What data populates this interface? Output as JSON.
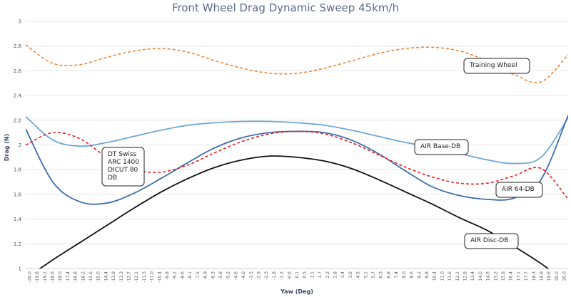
{
  "chart_data": {
    "type": "line",
    "title": "Front Wheel Drag Dynamic Sweep 45km/h",
    "xlabel": "Yaw (Deg)",
    "ylabel": "Drag (N)",
    "xlim": [
      -20.0,
      20.0
    ],
    "ylim": [
      1,
      3
    ],
    "yticks": [
      "1",
      "1.2",
      "1.4",
      "1.6",
      "1.8",
      "2",
      "2.2",
      "2.4",
      "2.6",
      "2.8",
      "3"
    ],
    "xticks": [
      "-20.0",
      "-19.8",
      "-19.2",
      "-18.6",
      "-18.0",
      "-17.4",
      "-16.8",
      "-16.2",
      "-15.6",
      "-15.0",
      "-14.4",
      "-13.9",
      "-13.3",
      "-12.7",
      "-12.1",
      "-11.5",
      "-11.0",
      "-10.4",
      "-9.8",
      "-9.2",
      "-8.6",
      "-8.1",
      "-7.5",
      "-6.9",
      "-6.3",
      "-5.8",
      "-5.2",
      "-4.6",
      "-4.0",
      "-3.5",
      "-2.9",
      "-2.3",
      "-1.8",
      "-1.2",
      "-0.6",
      "0.1",
      "0.5",
      "1.1",
      "1.7",
      "2.2",
      "2.8",
      "3.4",
      "3.9",
      "4.5",
      "5.1",
      "5.7",
      "6.3",
      "6.8",
      "7.4",
      "8.0",
      "8.6",
      "9.2",
      "9.8",
      "10.4",
      "11.0",
      "11.6",
      "12.1",
      "12.8",
      "13.4",
      "14.0",
      "14.6",
      "15.2",
      "15.8",
      "16.4",
      "17.1",
      "17.7",
      "18.3",
      "18.9",
      "19.6",
      "20.0",
      "20.0"
    ],
    "x": [
      -20,
      -18,
      -16,
      -14,
      -12,
      -10,
      -8,
      -6,
      -4,
      -2,
      0,
      2,
      4,
      6,
      8,
      10,
      12,
      14,
      16,
      18,
      20
    ],
    "series": [
      {
        "name": "Training Wheel",
        "color": "#e8883a",
        "dash": true,
        "values": [
          2.81,
          2.66,
          2.65,
          2.71,
          2.76,
          2.78,
          2.75,
          2.68,
          2.62,
          2.58,
          2.58,
          2.62,
          2.68,
          2.74,
          2.78,
          2.79,
          2.76,
          2.68,
          2.57,
          2.51,
          2.73
        ]
      },
      {
        "name": "AIR Base-DB",
        "color": "#6fa8d6",
        "dash": false,
        "values": [
          2.23,
          2.04,
          1.99,
          2.02,
          2.07,
          2.12,
          2.16,
          2.18,
          2.19,
          2.19,
          2.18,
          2.16,
          2.12,
          2.07,
          2.02,
          1.98,
          1.93,
          1.88,
          1.85,
          1.9,
          2.22
        ]
      },
      {
        "name": "AIR 64-DB",
        "color": "#3f6fad",
        "dash": false,
        "values": [
          2.13,
          1.7,
          1.54,
          1.53,
          1.61,
          1.73,
          1.86,
          1.98,
          2.06,
          2.1,
          2.11,
          2.1,
          2.04,
          1.93,
          1.79,
          1.66,
          1.59,
          1.56,
          1.57,
          1.72,
          2.24
        ]
      },
      {
        "name": "DT Swiss ARC 1400 DICUT 80 DB",
        "color": "#e02020",
        "dash": true,
        "values": [
          2.0,
          2.1,
          2.05,
          1.9,
          1.8,
          1.78,
          1.84,
          1.94,
          2.03,
          2.09,
          2.11,
          2.09,
          2.02,
          1.92,
          1.82,
          1.74,
          1.69,
          1.69,
          1.75,
          1.81,
          1.56
        ]
      },
      {
        "name": "AIR Disc-DB",
        "color": "#111111",
        "dash": false,
        "values": [
          0.92,
          1.07,
          1.21,
          1.35,
          1.49,
          1.62,
          1.73,
          1.82,
          1.88,
          1.91,
          1.9,
          1.87,
          1.81,
          1.72,
          1.62,
          1.52,
          1.41,
          1.31,
          1.18,
          1.04,
          0.88
        ]
      }
    ],
    "annotations": [
      {
        "series": "Training Wheel",
        "lines": [
          "Training Wheel"
        ]
      },
      {
        "series": "AIR Base-DB",
        "lines": [
          "AIR Base-DB"
        ]
      },
      {
        "series": "AIR 64-DB",
        "lines": [
          "AIR 64-DB"
        ]
      },
      {
        "series": "AIR Disc-DB",
        "lines": [
          "AIR Disc-DB"
        ]
      },
      {
        "series": "DT Swiss ARC 1400 DICUT 80 DB",
        "lines": [
          "DT Swiss",
          "ARC 1400",
          "DICUT 80",
          "DB"
        ]
      }
    ],
    "grid": true,
    "legend": "none"
  }
}
